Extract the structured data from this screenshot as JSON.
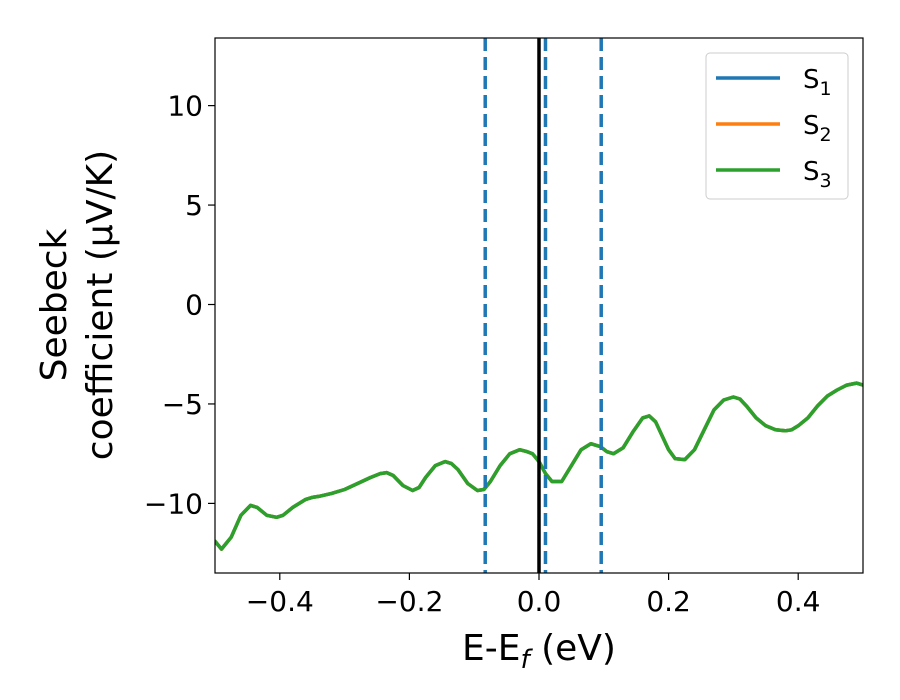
{
  "chart_data": {
    "type": "line",
    "xlabel": {
      "main": "E-E",
      "sub": "f",
      "tail": " (eV)"
    },
    "ylabel": {
      "line1": "Seebeck",
      "line2": "coefficient  (μV/K)"
    },
    "xlim": [
      -0.5,
      0.5
    ],
    "ylim": [
      -13.5,
      13.4
    ],
    "xticks": [
      -0.4,
      -0.2,
      0.0,
      0.2,
      0.4
    ],
    "xtick_labels": [
      "−0.4",
      "−0.2",
      "0.0",
      "0.2",
      "0.4"
    ],
    "yticks": [
      10,
      5,
      0,
      -5,
      -10
    ],
    "ytick_labels": [
      "10",
      "5",
      "0",
      "−5",
      "−10"
    ],
    "grid": false,
    "legend_position": "top-right",
    "vertical_lines": [
      {
        "x": -0.083,
        "style": "dashed",
        "color": "#1f77b4"
      },
      {
        "x": 0.0,
        "style": "solid",
        "color": "#000000"
      },
      {
        "x": 0.01,
        "style": "dashed",
        "color": "#1f77b4"
      },
      {
        "x": 0.096,
        "style": "dashed",
        "color": "#1f77b4"
      }
    ],
    "x": [
      -0.5,
      -0.49,
      -0.475,
      -0.46,
      -0.445,
      -0.435,
      -0.42,
      -0.405,
      -0.395,
      -0.38,
      -0.36,
      -0.35,
      -0.34,
      -0.32,
      -0.3,
      -0.28,
      -0.26,
      -0.245,
      -0.235,
      -0.225,
      -0.21,
      -0.195,
      -0.185,
      -0.175,
      -0.16,
      -0.145,
      -0.135,
      -0.125,
      -0.11,
      -0.095,
      -0.085,
      -0.075,
      -0.06,
      -0.045,
      -0.03,
      -0.018,
      -0.01,
      0.0,
      0.01,
      0.02,
      0.035,
      0.05,
      0.065,
      0.08,
      0.095,
      0.105,
      0.115,
      0.13,
      0.145,
      0.16,
      0.17,
      0.18,
      0.19,
      0.2,
      0.21,
      0.225,
      0.24,
      0.255,
      0.27,
      0.285,
      0.3,
      0.31,
      0.32,
      0.335,
      0.35,
      0.365,
      0.38,
      0.39,
      0.4,
      0.415,
      0.43,
      0.445,
      0.46,
      0.475,
      0.49,
      0.5
    ],
    "series": [
      {
        "name": "S",
        "sub": "1",
        "color": "#1f77b4",
        "values": [
          -11.9,
          -12.3,
          -11.7,
          -10.6,
          -10.1,
          -10.2,
          -10.6,
          -10.7,
          -10.6,
          -10.2,
          -9.8,
          -9.7,
          -9.65,
          -9.5,
          -9.3,
          -9.0,
          -8.7,
          -8.5,
          -8.45,
          -8.6,
          -9.1,
          -9.35,
          -9.2,
          -8.7,
          -8.1,
          -7.9,
          -8.0,
          -8.3,
          -9.0,
          -9.35,
          -9.3,
          -8.9,
          -8.1,
          -7.5,
          -7.3,
          -7.4,
          -7.5,
          -7.9,
          -8.5,
          -8.9,
          -8.9,
          -8.1,
          -7.3,
          -7.0,
          -7.15,
          -7.4,
          -7.5,
          -7.2,
          -6.4,
          -5.7,
          -5.6,
          -5.9,
          -6.6,
          -7.3,
          -7.75,
          -7.8,
          -7.3,
          -6.3,
          -5.3,
          -4.8,
          -4.65,
          -4.75,
          -5.1,
          -5.7,
          -6.1,
          -6.3,
          -6.35,
          -6.3,
          -6.1,
          -5.7,
          -5.1,
          -4.6,
          -4.3,
          -4.05,
          -3.95,
          -4.05
        ]
      },
      {
        "name": "S",
        "sub": "2",
        "color": "#ff7f0e",
        "values": [
          -11.9,
          -12.3,
          -11.7,
          -10.6,
          -10.1,
          -10.2,
          -10.6,
          -10.7,
          -10.6,
          -10.2,
          -9.8,
          -9.7,
          -9.65,
          -9.5,
          -9.3,
          -9.0,
          -8.7,
          -8.5,
          -8.45,
          -8.6,
          -9.1,
          -9.35,
          -9.2,
          -8.7,
          -8.1,
          -7.9,
          -8.0,
          -8.3,
          -9.0,
          -9.35,
          -9.3,
          -8.9,
          -8.1,
          -7.5,
          -7.3,
          -7.4,
          -7.5,
          -7.9,
          -8.5,
          -8.9,
          -8.9,
          -8.1,
          -7.3,
          -7.0,
          -7.15,
          -7.4,
          -7.5,
          -7.2,
          -6.4,
          -5.7,
          -5.6,
          -5.9,
          -6.6,
          -7.3,
          -7.75,
          -7.8,
          -7.3,
          -6.3,
          -5.3,
          -4.8,
          -4.65,
          -4.75,
          -5.1,
          -5.7,
          -6.1,
          -6.3,
          -6.35,
          -6.3,
          -6.1,
          -5.7,
          -5.1,
          -4.6,
          -4.3,
          -4.05,
          -3.95,
          -4.05
        ]
      },
      {
        "name": "S",
        "sub": "3",
        "color": "#2ca02c",
        "values": [
          -11.9,
          -12.3,
          -11.7,
          -10.6,
          -10.1,
          -10.2,
          -10.6,
          -10.7,
          -10.6,
          -10.2,
          -9.8,
          -9.7,
          -9.65,
          -9.5,
          -9.3,
          -9.0,
          -8.7,
          -8.5,
          -8.45,
          -8.6,
          -9.1,
          -9.35,
          -9.2,
          -8.7,
          -8.1,
          -7.9,
          -8.0,
          -8.3,
          -9.0,
          -9.35,
          -9.3,
          -8.9,
          -8.1,
          -7.5,
          -7.3,
          -7.4,
          -7.5,
          -7.9,
          -8.5,
          -8.9,
          -8.9,
          -8.1,
          -7.3,
          -7.0,
          -7.15,
          -7.4,
          -7.5,
          -7.2,
          -6.4,
          -5.7,
          -5.6,
          -5.9,
          -6.6,
          -7.3,
          -7.75,
          -7.8,
          -7.3,
          -6.3,
          -5.3,
          -4.8,
          -4.65,
          -4.75,
          -5.1,
          -5.7,
          -6.1,
          -6.3,
          -6.35,
          -6.3,
          -6.1,
          -5.7,
          -5.1,
          -4.6,
          -4.3,
          -4.05,
          -3.95,
          -4.05
        ]
      }
    ]
  }
}
